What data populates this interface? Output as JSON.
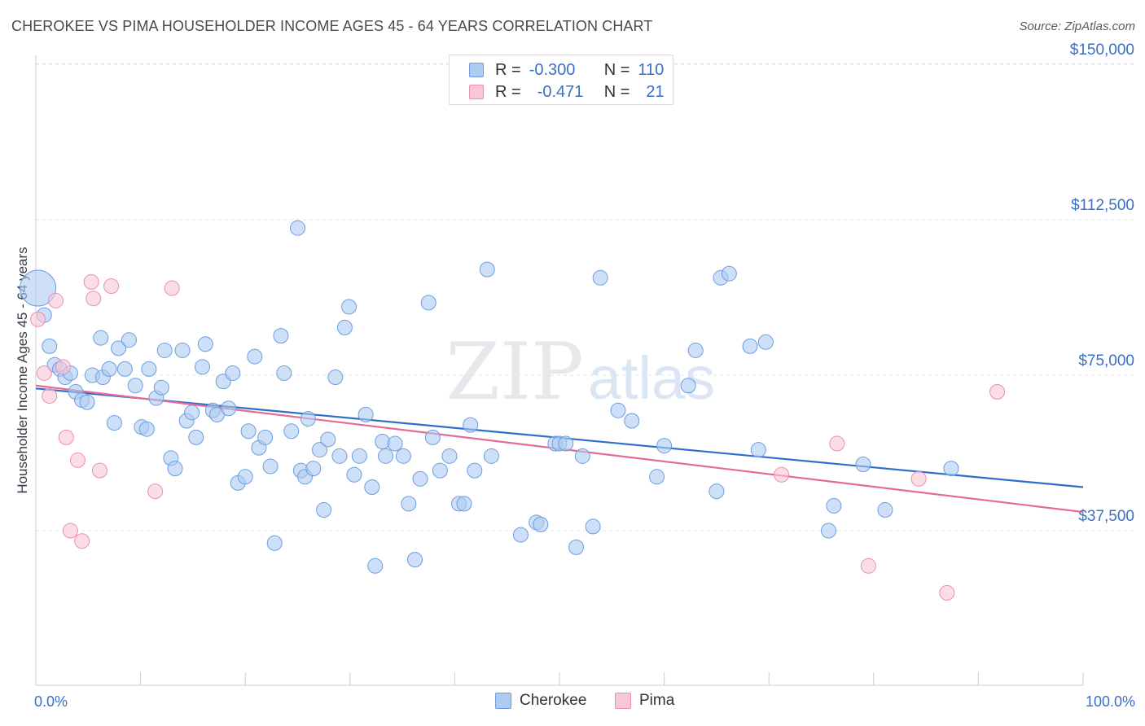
{
  "title": "CHEROKEE VS PIMA HOUSEHOLDER INCOME AGES 45 - 64 YEARS CORRELATION CHART",
  "source": "Source: ZipAtlas.com",
  "watermark": {
    "zip": "ZIP",
    "atlas": "atlas"
  },
  "legend_top": [
    {
      "r_label": "R =",
      "r_value": "-0.300",
      "n_label": "N =",
      "n_value": "110",
      "fill": "#aecbf2",
      "stroke": "#6d9de0"
    },
    {
      "r_label": "R =",
      "r_value": "-0.471",
      "n_label": "N =",
      "n_value": "21",
      "fill": "#f8c6d6",
      "stroke": "#eb8fae"
    }
  ],
  "x_tick_labels": {
    "left": "0.0%",
    "right": "100.0%"
  },
  "chart_data": {
    "type": "scatter",
    "title": "CHEROKEE VS PIMA HOUSEHOLDER INCOME AGES 45 - 64 YEARS CORRELATION CHART",
    "xlabel": "",
    "ylabel": "Householder Income Ages 45 - 64 years",
    "xlim": [
      0,
      100
    ],
    "ylim": [
      18000,
      155000
    ],
    "y_ticks": [
      37500,
      75000,
      112500,
      150000
    ],
    "y_tick_labels": [
      "$37,500",
      "$75,000",
      "$112,500",
      "$150,000"
    ],
    "grid": "horizontal dashed",
    "legend_position": "top-center",
    "series": [
      {
        "name": "Cherokee",
        "color": "#6d9de0",
        "fill": "#aecbf2",
        "trend": {
          "x": [
            0,
            100
          ],
          "y": [
            71800,
            48000
          ]
        },
        "points": [
          [
            0.2,
            96000
          ],
          [
            0.8,
            89500
          ],
          [
            1.3,
            82000
          ],
          [
            1.8,
            77500
          ],
          [
            2.3,
            76500
          ],
          [
            2.8,
            74500
          ],
          [
            3.3,
            75500
          ],
          [
            3.8,
            71000
          ],
          [
            4.4,
            69000
          ],
          [
            4.9,
            68500
          ],
          [
            5.4,
            75000
          ],
          [
            6.2,
            84000
          ],
          [
            6.4,
            74500
          ],
          [
            7.0,
            76500
          ],
          [
            7.5,
            63500
          ],
          [
            7.9,
            81500
          ],
          [
            8.5,
            76500
          ],
          [
            8.9,
            83500
          ],
          [
            9.5,
            72500
          ],
          [
            10.1,
            62500
          ],
          [
            10.6,
            62000
          ],
          [
            10.8,
            76500
          ],
          [
            11.5,
            69500
          ],
          [
            12.0,
            72000
          ],
          [
            12.3,
            81000
          ],
          [
            12.9,
            55000
          ],
          [
            13.3,
            52500
          ],
          [
            14.0,
            81000
          ],
          [
            14.4,
            64000
          ],
          [
            14.9,
            66000
          ],
          [
            15.3,
            60000
          ],
          [
            15.9,
            77000
          ],
          [
            16.2,
            82500
          ],
          [
            16.9,
            66500
          ],
          [
            17.3,
            65500
          ],
          [
            17.9,
            73500
          ],
          [
            18.4,
            67000
          ],
          [
            18.8,
            75500
          ],
          [
            19.3,
            49000
          ],
          [
            20.0,
            50500
          ],
          [
            20.3,
            61500
          ],
          [
            20.9,
            79500
          ],
          [
            21.3,
            57500
          ],
          [
            21.9,
            60000
          ],
          [
            22.4,
            53000
          ],
          [
            22.8,
            34500
          ],
          [
            23.4,
            84500
          ],
          [
            23.7,
            75500
          ],
          [
            24.4,
            61500
          ],
          [
            25.0,
            110500
          ],
          [
            25.3,
            52000
          ],
          [
            25.7,
            50500
          ],
          [
            26.0,
            64500
          ],
          [
            26.5,
            52500
          ],
          [
            27.1,
            57000
          ],
          [
            27.5,
            42500
          ],
          [
            27.9,
            59500
          ],
          [
            28.6,
            74500
          ],
          [
            29.0,
            55500
          ],
          [
            29.5,
            86500
          ],
          [
            29.9,
            91500
          ],
          [
            30.4,
            51000
          ],
          [
            30.9,
            55500
          ],
          [
            31.5,
            65500
          ],
          [
            32.1,
            48000
          ],
          [
            32.4,
            29000
          ],
          [
            33.1,
            59000
          ],
          [
            33.4,
            55500
          ],
          [
            34.3,
            58500
          ],
          [
            35.1,
            55500
          ],
          [
            35.6,
            44000
          ],
          [
            36.2,
            30500
          ],
          [
            36.7,
            50000
          ],
          [
            37.5,
            92500
          ],
          [
            37.9,
            60000
          ],
          [
            38.6,
            52000
          ],
          [
            39.5,
            55500
          ],
          [
            40.4,
            44000
          ],
          [
            40.9,
            44000
          ],
          [
            41.5,
            63000
          ],
          [
            41.9,
            52000
          ],
          [
            43.1,
            100500
          ],
          [
            43.5,
            55500
          ],
          [
            46.3,
            36500
          ],
          [
            47.8,
            39500
          ],
          [
            48.2,
            39000
          ],
          [
            49.6,
            58500
          ],
          [
            50.0,
            58500
          ],
          [
            50.6,
            58500
          ],
          [
            51.6,
            33500
          ],
          [
            52.2,
            55500
          ],
          [
            53.2,
            38500
          ],
          [
            53.9,
            98500
          ],
          [
            55.6,
            66500
          ],
          [
            56.9,
            64000
          ],
          [
            59.3,
            50500
          ],
          [
            60.0,
            58000
          ],
          [
            62.3,
            72500
          ],
          [
            63.0,
            81000
          ],
          [
            65.0,
            47000
          ],
          [
            65.4,
            98500
          ],
          [
            66.2,
            99500
          ],
          [
            68.2,
            82000
          ],
          [
            69.0,
            57000
          ],
          [
            69.7,
            83000
          ],
          [
            75.7,
            37500
          ],
          [
            76.2,
            43500
          ],
          [
            79.0,
            53500
          ],
          [
            81.1,
            42500
          ],
          [
            87.4,
            52500
          ]
        ]
      },
      {
        "name": "Pima",
        "color": "#eb8fae",
        "fill": "#f8c6d6",
        "trend": {
          "x": [
            0,
            100
          ],
          "y": [
            72500,
            42000
          ]
        },
        "points": [
          [
            0.2,
            88500
          ],
          [
            0.8,
            75500
          ],
          [
            1.3,
            70000
          ],
          [
            1.9,
            93000
          ],
          [
            2.6,
            77000
          ],
          [
            2.9,
            60000
          ],
          [
            3.3,
            37500
          ],
          [
            4.0,
            54500
          ],
          [
            4.4,
            35000
          ],
          [
            5.3,
            97500
          ],
          [
            5.5,
            93500
          ],
          [
            6.1,
            52000
          ],
          [
            7.2,
            96500
          ],
          [
            11.4,
            47000
          ],
          [
            13.0,
            96000
          ],
          [
            76.5,
            58500
          ],
          [
            71.2,
            51000
          ],
          [
            79.5,
            29000
          ],
          [
            84.3,
            50000
          ],
          [
            87.0,
            22500
          ],
          [
            91.8,
            71000
          ]
        ]
      }
    ]
  }
}
